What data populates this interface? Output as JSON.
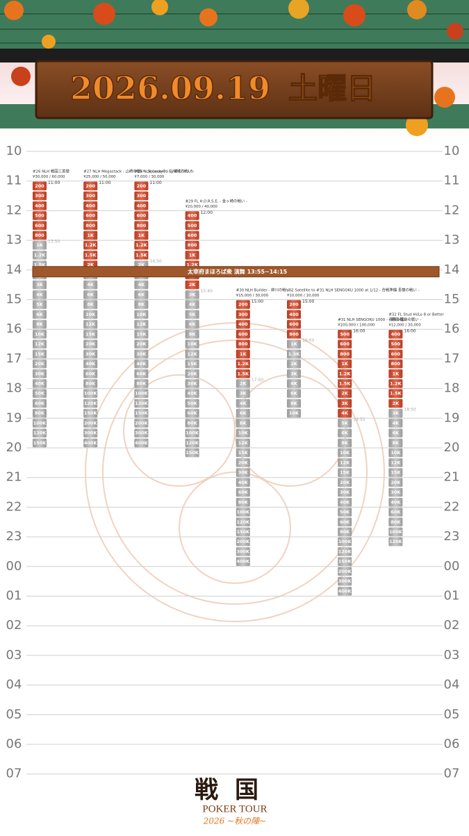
{
  "header": {
    "date": "2026.09.19",
    "weekday": "土曜日"
  },
  "hours": [
    "10",
    "11",
    "12",
    "13",
    "14",
    "15",
    "16",
    "17",
    "18",
    "19",
    "20",
    "21",
    "22",
    "23",
    "00",
    "01",
    "02",
    "03",
    "04",
    "05",
    "06",
    "07"
  ],
  "banner": "太宰府まほろば衆 演舞 13:55~14:15",
  "events": [
    {
      "title": [
        "#26 NLH 戦国三英傑",
        "¥30,000 / 60,000"
      ],
      "start": "11:00",
      "late_reg": "13:50",
      "reg_levels": [
        "200",
        "300",
        "400",
        "500",
        "600",
        "800"
      ],
      "post_levels": [
        "1K",
        "1.2K",
        "1.5K",
        "2K",
        "3K",
        "4K",
        "5K",
        "6K",
        "8K",
        "10K",
        "12K",
        "15K",
        "20K",
        "30K",
        "40K",
        "50K",
        "60K",
        "80K",
        "100K",
        "120K",
        "150K"
      ]
    },
    {
      "title": [
        "#27 NLH Megastack - 山崎の戦い - Sponsored by のむシリカ",
        "¥25,000 / 50,000"
      ],
      "start": "11:00",
      "late_reg": "15:15",
      "reg_levels": [
        "200",
        "300",
        "400",
        "600",
        "800",
        "1K",
        "1.2K",
        "1.5K",
        "2K"
      ],
      "post_levels": [
        "3K",
        "4K",
        "6K",
        "8K",
        "10K",
        "12K",
        "15K",
        "20K",
        "30K",
        "40K",
        "60K",
        "80K",
        "100K",
        "120K",
        "150K",
        "200K",
        "300K",
        "400K"
      ]
    },
    {
      "title": [
        "#28 NLH Lucky7 - 三増峠の戦い -",
        "¥7,000 / 30,000"
      ],
      "start": "11:00",
      "late_reg": "14:50",
      "reg_levels": [
        "200",
        "300",
        "400",
        "600",
        "800",
        "1K",
        "1.2K",
        "1.5K"
      ],
      "post_levels": [
        "2K",
        "3K",
        "4K",
        "6K",
        "8K",
        "10K",
        "12K",
        "15K",
        "20K",
        "30K",
        "40K",
        "60K",
        "80K",
        "100K",
        "120K",
        "150K",
        "200K",
        "300K",
        "400K"
      ]
    },
    {
      "title": [
        "#29 FL H.O.R.S.E. - 金ヶ崎の戦い -",
        "¥20,000 / 40,000"
      ],
      "start": "12:00",
      "late_reg": "15:40",
      "reg_levels": [
        "400",
        "500",
        "600",
        "800",
        "1K",
        "1.2K",
        "1.5K",
        "2K"
      ],
      "post_levels": [
        "3K",
        "4K",
        "5K",
        "6K",
        "8K",
        "10K",
        "12K",
        "15K",
        "20K",
        "30K",
        "40K",
        "50K",
        "60K",
        "80K",
        "100K",
        "120K",
        "150K"
      ]
    },
    {
      "title": [
        "#30 NLH Builder - 姉川の戦い -",
        "¥15,000 / 30,000"
      ],
      "start": "15:00",
      "late_reg": "17:50",
      "reg_levels": [
        "200",
        "300",
        "400",
        "600",
        "800",
        "1K",
        "1.2K",
        "1.5K"
      ],
      "post_levels": [
        "2K",
        "3K",
        "4K",
        "6K",
        "8K",
        "10K",
        "12K",
        "15K",
        "20K",
        "30K",
        "40K",
        "60K",
        "80K",
        "100K",
        "120K",
        "150K",
        "200K",
        "300K",
        "400K"
      ]
    },
    {
      "title": [
        "s02 Satellite to #31 NLH SENGOKU 1000 at 1/12 - 合戦準備 長篠の戦い -",
        "¥10,000 / 10,000"
      ],
      "start": "15:00",
      "late_reg": "16:00",
      "reg_levels": [
        "200",
        "400",
        "600",
        "800"
      ],
      "post_levels": [
        "1K",
        "1.5K",
        "2K",
        "3K",
        "4K",
        "6K",
        "8K",
        "10K"
      ]
    },
    {
      "title": [
        "#31 NLH SENGOKU 1000 - 長篠の戦い -",
        "¥100,000 / 100,000"
      ],
      "start": "16:00",
      "late_reg": "19:55",
      "reg_levels": [
        "500",
        "600",
        "800",
        "1K",
        "1.2K",
        "1.5K",
        "2K",
        "3K",
        "4K"
      ],
      "post_levels": [
        "5K",
        "6K",
        "8K",
        "10K",
        "12K",
        "15K",
        "20K",
        "30K",
        "40K",
        "50K",
        "60K",
        "80K",
        "100K",
        "120K",
        "150K",
        "200K",
        "300K",
        "400K"
      ]
    },
    {
      "title": [
        "#32 FL Stud Hi/Lo 8 or Better",
        "- 野田・福島の戦い -",
        "¥12,000 / 30,000"
      ],
      "start": "16:00",
      "late_reg": "18:50",
      "reg_levels": [
        "400",
        "500",
        "600",
        "800",
        "1K",
        "1.2K",
        "1.5K",
        "2K"
      ],
      "post_levels": [
        "3K",
        "4K",
        "6K",
        "8K",
        "10K",
        "12K",
        "15K",
        "20K",
        "30K",
        "40K",
        "60K",
        "80K",
        "100K",
        "120K"
      ]
    }
  ],
  "footer": {
    "logo": "戦国",
    "brand": "POKER TOUR",
    "season": "2026 ~秋の陣~"
  }
}
